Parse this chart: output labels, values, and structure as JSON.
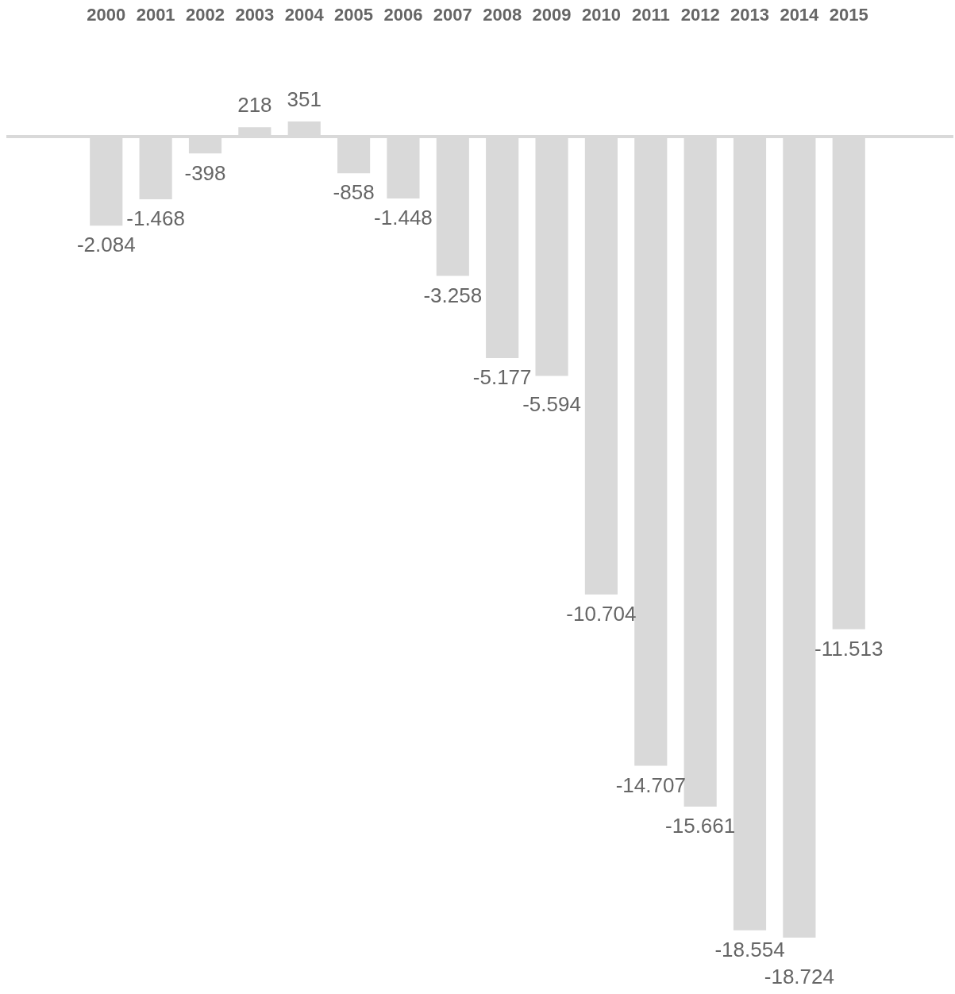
{
  "chart_data": {
    "type": "bar",
    "categories": [
      "2000",
      "2001",
      "2002",
      "2003",
      "2004",
      "2005",
      "2006",
      "2007",
      "2008",
      "2009",
      "2010",
      "2011",
      "2012",
      "2013",
      "2014",
      "2015"
    ],
    "values": [
      -2084,
      -1468,
      -398,
      218,
      351,
      -858,
      -1448,
      -3258,
      -5177,
      -5594,
      -10704,
      -14707,
      -15661,
      -18554,
      -18724,
      -11513
    ],
    "value_labels": [
      "-2.084",
      "-1.468",
      "-398",
      "218",
      "351",
      "-858",
      "-1.448",
      "-3.258",
      "-5.177",
      "-5.594",
      "-10.704",
      "-14.707",
      "-15.661",
      "-18.554",
      "-18.724",
      "-11.513"
    ],
    "color": "#d9d9d9",
    "tick_labels": "x"
  }
}
